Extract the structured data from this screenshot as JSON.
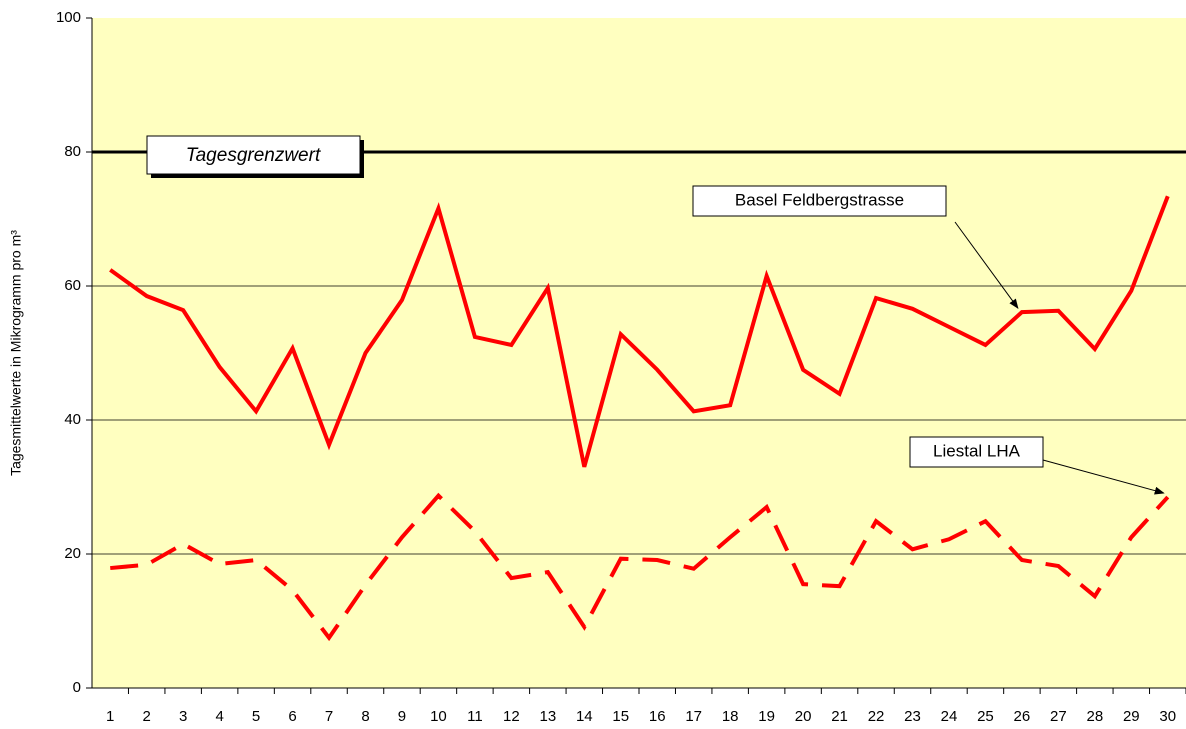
{
  "chart_data": {
    "type": "line",
    "y_label": "Tagesmittelwerte in Mikrogramm pro m³",
    "categories": [
      "1",
      "2",
      "3",
      "4",
      "5",
      "6",
      "7",
      "8",
      "9",
      "10",
      "11",
      "12",
      "13",
      "14",
      "15",
      "16",
      "17",
      "18",
      "19",
      "20",
      "21",
      "22",
      "23",
      "24",
      "25",
      "26",
      "27",
      "28",
      "29",
      "30"
    ],
    "series": [
      {
        "name": "Basel Feldbergstrasse",
        "color": "#ff0000",
        "style": "solid",
        "values": [
          62.4,
          58.5,
          56.4,
          47.9,
          41.3,
          50.7,
          36.3,
          50.0,
          57.9,
          71.6,
          52.4,
          51.2,
          59.7,
          33.0,
          52.8,
          47.5,
          41.3,
          42.2,
          61.5,
          47.5,
          43.9,
          58.2,
          56.6,
          53.9,
          51.2,
          56.1,
          56.3,
          50.6,
          59.3,
          73.4
        ]
      },
      {
        "name": "Liestal LHA",
        "color": "#ff0000",
        "style": "dashed",
        "values": [
          17.9,
          18.4,
          21.5,
          18.5,
          19.1,
          14.6,
          7.5,
          15.4,
          22.5,
          28.7,
          23.4,
          16.4,
          17.3,
          9.1,
          19.3,
          19.1,
          17.8,
          22.5,
          27.0,
          15.5,
          15.2,
          24.9,
          20.7,
          22.2,
          24.9,
          19.1,
          18.2,
          13.7,
          22.5,
          28.5
        ]
      }
    ],
    "threshold": {
      "value": 80,
      "label": "Tagesgrenzwert"
    },
    "ylim": [
      0,
      100
    ],
    "yticks": [
      0,
      20,
      40,
      60,
      80,
      100
    ],
    "grid": true,
    "plot_background": "#ffffc0"
  }
}
